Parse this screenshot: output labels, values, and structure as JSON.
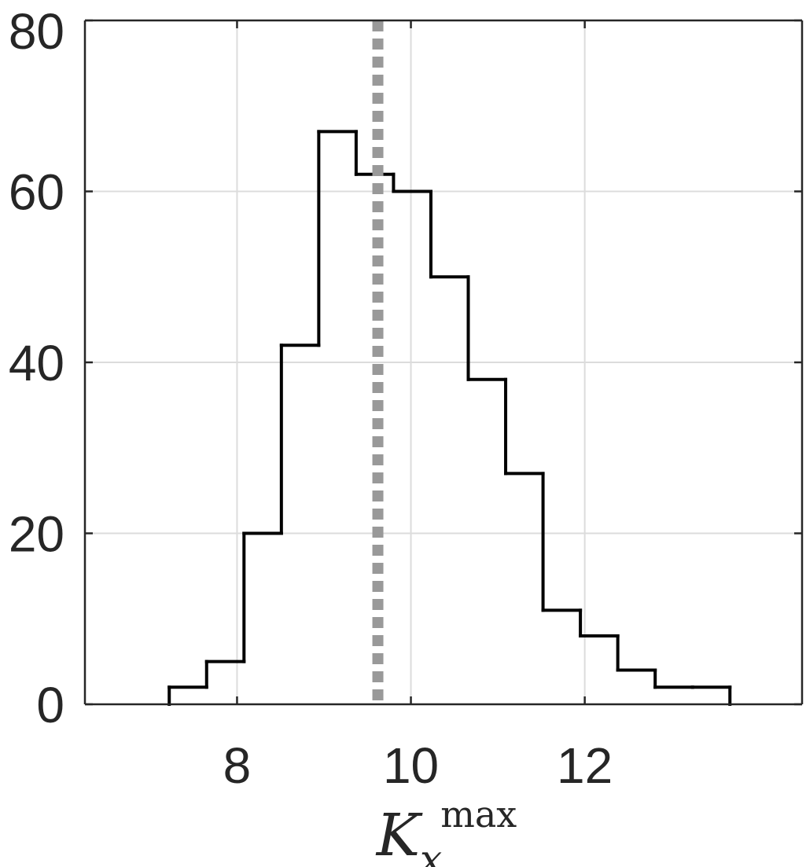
{
  "chart_data": {
    "type": "histogram",
    "title": "",
    "xlabel": {
      "main": "K",
      "sub": "x",
      "sup": "max"
    },
    "ylabel": "",
    "xlim": [
      6.25,
      14.5
    ],
    "ylim": [
      0,
      80
    ],
    "xticks": [
      8,
      10,
      12
    ],
    "xtick_labels": [
      "8",
      "10",
      "12"
    ],
    "yticks": [
      0,
      20,
      40,
      60,
      80
    ],
    "ytick_labels": [
      "0",
      "20",
      "40",
      "60",
      "80"
    ],
    "grid": true,
    "bins": [
      {
        "x0": 7.22,
        "x1": 7.65,
        "count": 2
      },
      {
        "x0": 7.65,
        "x1": 8.08,
        "count": 5
      },
      {
        "x0": 8.08,
        "x1": 8.51,
        "count": 20
      },
      {
        "x0": 8.51,
        "x1": 8.94,
        "count": 42
      },
      {
        "x0": 8.94,
        "x1": 9.37,
        "count": 67
      },
      {
        "x0": 9.37,
        "x1": 9.8,
        "count": 62
      },
      {
        "x0": 9.8,
        "x1": 10.23,
        "count": 60
      },
      {
        "x0": 10.23,
        "x1": 10.66,
        "count": 50
      },
      {
        "x0": 10.66,
        "x1": 11.09,
        "count": 38
      },
      {
        "x0": 11.09,
        "x1": 11.52,
        "count": 27
      },
      {
        "x0": 11.52,
        "x1": 11.95,
        "count": 11
      },
      {
        "x0": 11.95,
        "x1": 12.38,
        "count": 8
      },
      {
        "x0": 12.38,
        "x1": 12.81,
        "count": 4
      },
      {
        "x0": 12.81,
        "x1": 13.24,
        "count": 2
      },
      {
        "x0": 13.24,
        "x1": 13.67,
        "count": 2
      }
    ],
    "reference_line": {
      "x": 9.62,
      "style": "dotted",
      "color": "#999999"
    },
    "colors": {
      "step": "#000000",
      "grid": "#dcdcdc",
      "axis": "#262626"
    }
  }
}
